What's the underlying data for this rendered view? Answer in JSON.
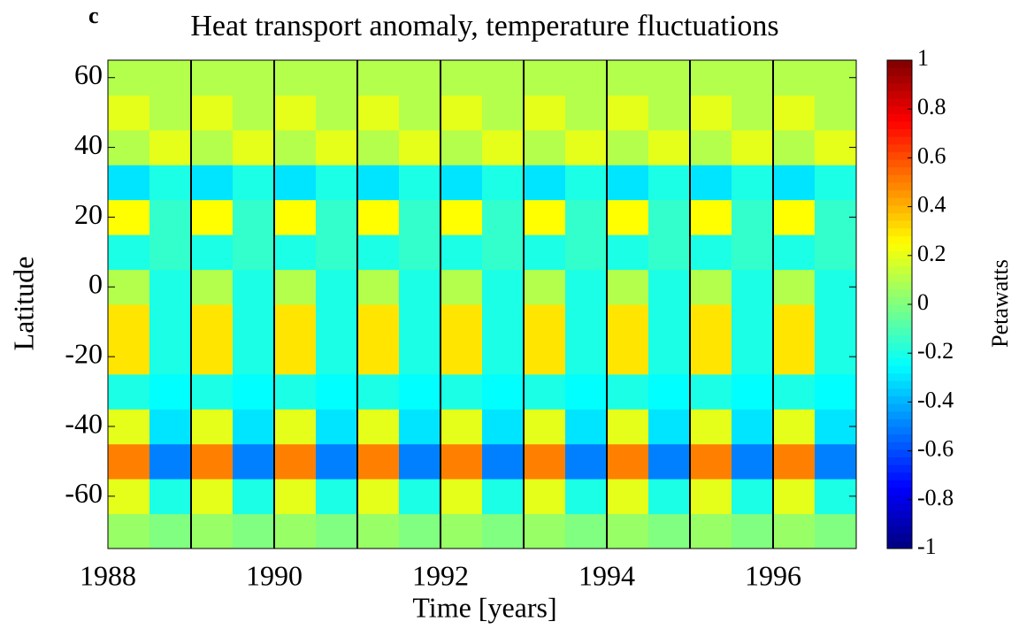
{
  "chart_data": {
    "type": "heatmap",
    "panel_label": "c",
    "title": "Heat transport anomaly, temperature fluctuations",
    "xlabel": "Time [years]",
    "ylabel": "Latitude",
    "colorbar_label": "Petawatts",
    "colormap": "jet",
    "x": [
      1988.25,
      1988.75,
      1989.25,
      1989.75,
      1990.25,
      1990.75,
      1991.25,
      1991.75,
      1992.25,
      1992.75,
      1993.25,
      1993.75,
      1994.25,
      1994.75,
      1995.25,
      1995.75,
      1996.25,
      1996.75
    ],
    "y": [
      -70,
      -60,
      -50,
      -40,
      -30,
      -20,
      -10,
      0,
      10,
      20,
      30,
      40,
      50,
      60
    ],
    "z": [
      [
        0.05,
        0,
        0.05,
        0,
        0.05,
        0,
        0.05,
        0,
        0.05,
        0,
        0.05,
        0,
        0.05,
        0,
        0.05,
        0,
        0.05,
        0
      ],
      [
        0.2,
        -0.2,
        0.2,
        -0.2,
        0.2,
        -0.2,
        0.2,
        -0.2,
        0.2,
        -0.2,
        0.2,
        -0.2,
        0.2,
        -0.2,
        0.2,
        -0.2,
        0.2,
        -0.2
      ],
      [
        0.5,
        -0.5,
        0.5,
        -0.5,
        0.5,
        -0.5,
        0.5,
        -0.5,
        0.5,
        -0.5,
        0.5,
        -0.5,
        0.5,
        -0.5,
        0.5,
        -0.5,
        0.5,
        -0.5
      ],
      [
        0.2,
        -0.3,
        0.2,
        -0.3,
        0.2,
        -0.3,
        0.2,
        -0.3,
        0.2,
        -0.3,
        0.2,
        -0.3,
        0.2,
        -0.3,
        0.2,
        -0.3,
        0.2,
        -0.3
      ],
      [
        -0.2,
        -0.25,
        -0.2,
        -0.25,
        -0.2,
        -0.25,
        -0.2,
        -0.25,
        -0.2,
        -0.25,
        -0.2,
        -0.25,
        -0.2,
        -0.25,
        -0.2,
        -0.25,
        -0.2,
        -0.25
      ],
      [
        0.3,
        -0.2,
        0.3,
        -0.2,
        0.3,
        -0.2,
        0.3,
        -0.2,
        0.3,
        -0.2,
        0.3,
        -0.2,
        0.3,
        -0.2,
        0.3,
        -0.2,
        0.3,
        -0.2
      ],
      [
        0.3,
        -0.2,
        0.3,
        -0.2,
        0.3,
        -0.2,
        0.3,
        -0.2,
        0.3,
        -0.2,
        0.3,
        -0.2,
        0.3,
        -0.2,
        0.3,
        -0.2,
        0.3,
        -0.2
      ],
      [
        0.1,
        -0.2,
        0.1,
        -0.2,
        0.1,
        -0.2,
        0.1,
        -0.2,
        0.1,
        -0.2,
        0.1,
        -0.2,
        0.1,
        -0.2,
        0.1,
        -0.2,
        0.1,
        -0.2
      ],
      [
        -0.2,
        -0.15,
        -0.2,
        -0.15,
        -0.2,
        -0.15,
        -0.2,
        -0.15,
        -0.2,
        -0.15,
        -0.2,
        -0.15,
        -0.2,
        -0.15,
        -0.2,
        -0.15,
        -0.2,
        -0.15
      ],
      [
        0.25,
        -0.15,
        0.25,
        -0.15,
        0.25,
        -0.15,
        0.25,
        -0.15,
        0.25,
        -0.15,
        0.25,
        -0.15,
        0.25,
        -0.15,
        0.25,
        -0.15,
        0.25,
        -0.15
      ],
      [
        -0.3,
        -0.2,
        -0.3,
        -0.2,
        -0.3,
        -0.2,
        -0.3,
        -0.2,
        -0.3,
        -0.2,
        -0.3,
        -0.2,
        -0.3,
        -0.2,
        -0.3,
        -0.2,
        -0.3,
        -0.2
      ],
      [
        0.1,
        0.2,
        0.1,
        0.2,
        0.1,
        0.2,
        0.1,
        0.2,
        0.1,
        0.2,
        0.1,
        0.2,
        0.1,
        0.2,
        0.1,
        0.2,
        0.1,
        0.2
      ],
      [
        0.2,
        0.1,
        0.2,
        0.1,
        0.2,
        0.1,
        0.2,
        0.1,
        0.2,
        0.1,
        0.2,
        0.1,
        0.2,
        0.1,
        0.2,
        0.1,
        0.2,
        0.1
      ],
      [
        0.1,
        0.1,
        0.1,
        0.1,
        0.1,
        0.1,
        0.1,
        0.1,
        0.1,
        0.1,
        0.1,
        0.1,
        0.1,
        0.1,
        0.1,
        0.1,
        0.1,
        0.1
      ]
    ],
    "xlim": [
      1988,
      1997
    ],
    "ylim": [
      -75,
      65
    ],
    "clim": [
      -1,
      1
    ],
    "xticks": [
      1988,
      1990,
      1992,
      1994,
      1996
    ],
    "yticks": [
      -60,
      -40,
      -20,
      0,
      20,
      40,
      60
    ],
    "cticks": [
      -1,
      -0.8,
      -0.6,
      -0.4,
      -0.2,
      0,
      0.2,
      0.4,
      0.6,
      0.8,
      1
    ],
    "vlines": [
      1989,
      1990,
      1991,
      1992,
      1993,
      1994,
      1995,
      1996
    ]
  }
}
